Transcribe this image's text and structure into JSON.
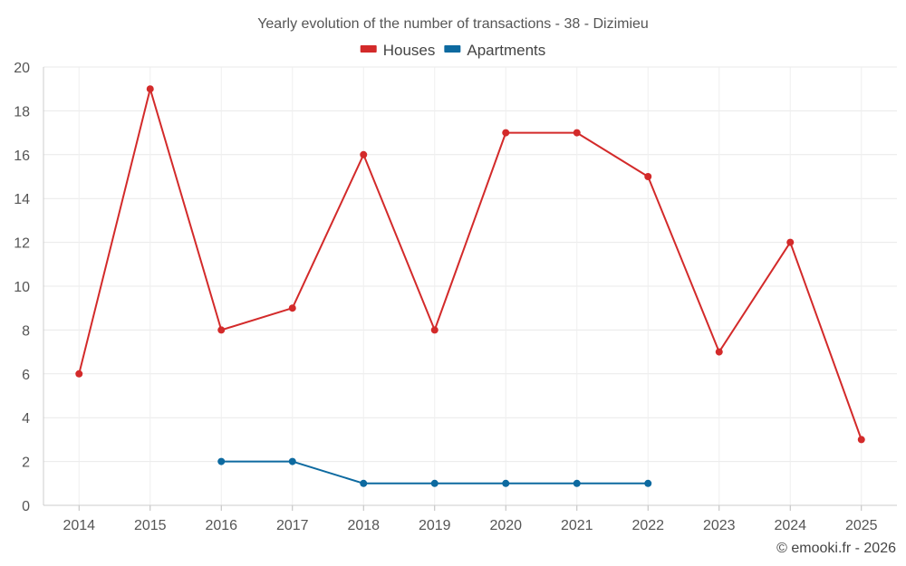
{
  "chart_data": {
    "type": "line",
    "title": "Yearly evolution of the number of transactions - 38 - Dizimieu",
    "xlabel": "",
    "ylabel": "",
    "categories": [
      "2014",
      "2015",
      "2016",
      "2017",
      "2018",
      "2019",
      "2020",
      "2021",
      "2022",
      "2023",
      "2024",
      "2025"
    ],
    "ylim": [
      0,
      20
    ],
    "yticks": [
      0,
      2,
      4,
      6,
      8,
      10,
      12,
      14,
      16,
      18,
      20
    ],
    "grid": true,
    "legend_position": "top-center",
    "series": [
      {
        "name": "Houses",
        "color": "#d32a2a",
        "values": [
          6,
          19,
          8,
          9,
          16,
          8,
          17,
          17,
          15,
          7,
          12,
          3
        ]
      },
      {
        "name": "Apartments",
        "color": "#0d6aa0",
        "values": [
          null,
          null,
          2,
          2,
          1,
          1,
          1,
          1,
          1,
          null,
          null,
          null
        ]
      }
    ]
  },
  "credit": "© emooki.fr - 2026"
}
